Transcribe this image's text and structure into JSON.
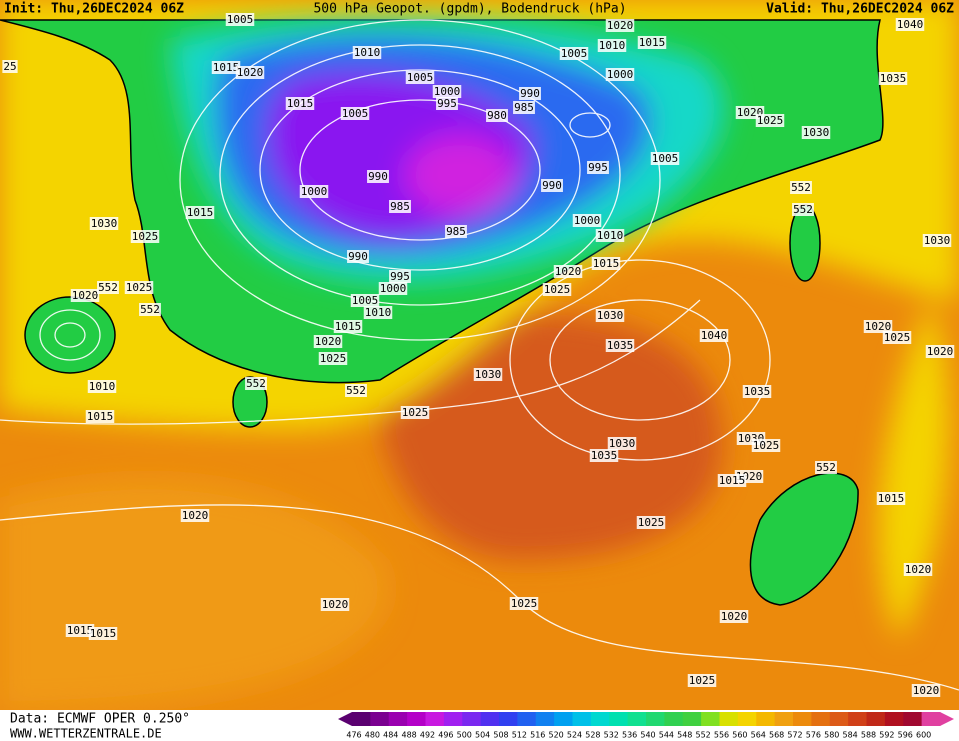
{
  "header": {
    "init": "Init: Thu,26DEC2024 06Z",
    "title": "500 hPa Geopot. (gpdm), Bodendruck (hPa)",
    "valid": "Valid: Thu,26DEC2024 06Z"
  },
  "footer": {
    "data": "Data: ECMWF OPER 0.250°",
    "website": "WWW.WETTERZENTRALE.DE"
  },
  "colorbar": {
    "labels": [
      476,
      480,
      484,
      488,
      492,
      496,
      500,
      504,
      508,
      512,
      516,
      520,
      524,
      528,
      532,
      536,
      540,
      544,
      548,
      552,
      556,
      560,
      564,
      568,
      572,
      576,
      580,
      584,
      588,
      592,
      596,
      600
    ]
  },
  "map": {
    "isobar_labels": [
      "1005",
      "1010",
      "1015",
      "1020",
      "1005",
      "1015",
      "1005",
      "1000",
      "995",
      "990",
      "985",
      "980",
      "1020",
      "1015",
      "1005",
      "1010",
      "1000",
      "1020",
      "1025",
      "1030",
      "1040",
      "1035",
      "1005",
      "995",
      "990",
      "990",
      "1000",
      "985",
      "985",
      "1000",
      "1010",
      "1015",
      "1020",
      "1025",
      "990",
      "995",
      "1000",
      "1005",
      "1010",
      "1015",
      "1020",
      "1025",
      "552",
      "1015",
      "1025",
      "1030",
      "1025",
      "1020",
      "552",
      "552",
      "1010",
      "1015",
      "552",
      "1025",
      "1030",
      "1030",
      "1035",
      "1040",
      "1035",
      "552",
      "552",
      "1030",
      "1020",
      "1025",
      "1020",
      "1030",
      "1025",
      "1030",
      "1035",
      "1020",
      "1015",
      "552",
      "1015",
      "1025",
      "1020",
      "1020",
      "1025",
      "1020",
      "1020",
      "1015",
      "1015",
      "1025",
      "1020",
      "25"
    ]
  }
}
